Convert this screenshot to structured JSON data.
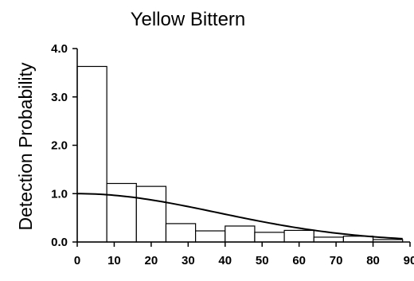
{
  "chart_data": {
    "type": "bar",
    "title": "Yellow Bittern",
    "xlabel": "",
    "ylabel": "Detection Probability",
    "xlim": [
      0,
      90
    ],
    "ylim": [
      0,
      4
    ],
    "x_ticks": [
      "0",
      "10",
      "20",
      "30",
      "40",
      "50",
      "60",
      "70",
      "80",
      "90"
    ],
    "y_ticks": [
      "0.0",
      "1.0",
      "2.0",
      "3.0",
      "4.0"
    ],
    "bin_width": 8,
    "bins": [
      {
        "start": 0,
        "end": 8,
        "value": 3.63
      },
      {
        "start": 8,
        "end": 16,
        "value": 1.21
      },
      {
        "start": 16,
        "end": 24,
        "value": 1.15
      },
      {
        "start": 24,
        "end": 32,
        "value": 0.38
      },
      {
        "start": 32,
        "end": 40,
        "value": 0.23
      },
      {
        "start": 40,
        "end": 48,
        "value": 0.33
      },
      {
        "start": 48,
        "end": 56,
        "value": 0.2
      },
      {
        "start": 56,
        "end": 64,
        "value": 0.24
      },
      {
        "start": 64,
        "end": 72,
        "value": 0.1
      },
      {
        "start": 72,
        "end": 80,
        "value": 0.12
      },
      {
        "start": 80,
        "end": 88,
        "value": 0.05
      }
    ],
    "fitted_curve": {
      "type": "half-normal",
      "intercept": 1.0,
      "sigma": 38,
      "x_range": [
        0,
        88
      ]
    },
    "grid": false,
    "legend": "none"
  }
}
